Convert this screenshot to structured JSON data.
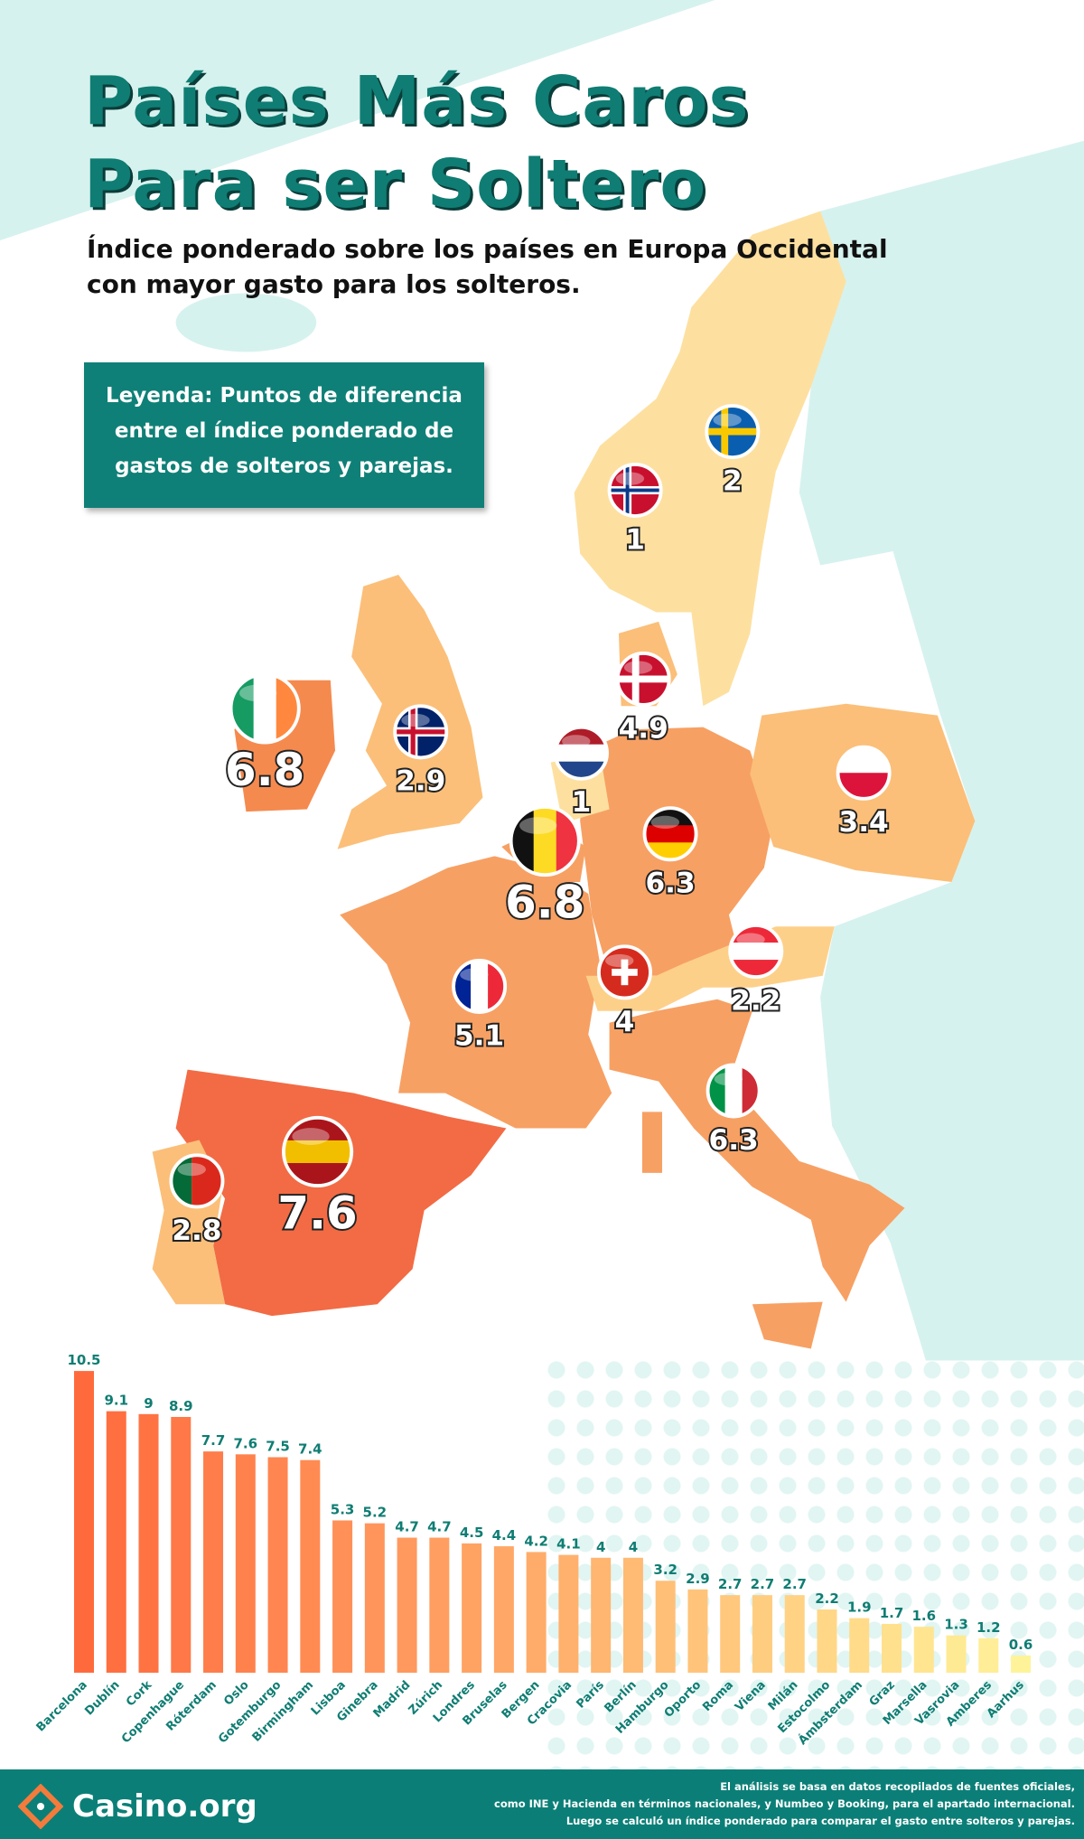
{
  "title_line1": "Países Más Caros",
  "title_line2": "Para ser Soltero",
  "subtitle_line1": "Índice ponderado sobre los países en Europa Occidental",
  "subtitle_line2": "con mayor gasto para los solteros.",
  "legend": [
    "Leyenda: Puntos de diferencia",
    "entre el índice ponderado de",
    "gastos de solteros y parejas."
  ],
  "colors": {
    "teal": "#0f8077",
    "title": "#0f7d73",
    "highest": "#f26b45",
    "high": "#f7a063",
    "mid": "#fbbf79",
    "low": "#fde0a0",
    "other_land": "#d6f2ee"
  },
  "map": [
    {
      "country": "Suecia",
      "flag": "sweden-flag",
      "value": "2"
    },
    {
      "country": "Noruega",
      "flag": "norway-flag",
      "value": "1"
    },
    {
      "country": "Dinamarca",
      "flag": "denmark-flag",
      "value": "4.9"
    },
    {
      "country": "Países Bajos",
      "flag": "netherlands-flag",
      "value": "1"
    },
    {
      "country": "Reino Unido",
      "flag": "uk-flag",
      "value": "2.9"
    },
    {
      "country": "Irlanda",
      "flag": "ireland-flag",
      "value": "6.8"
    },
    {
      "country": "Polonia",
      "flag": "poland-flag",
      "value": "3.4"
    },
    {
      "country": "Bélgica",
      "flag": "belgium-flag",
      "value": "6.8"
    },
    {
      "country": "Alemania",
      "flag": "germany-flag",
      "value": "6.3"
    },
    {
      "country": "Francia",
      "flag": "france-flag",
      "value": "5.1"
    },
    {
      "country": "Suiza",
      "flag": "switzerland-flag",
      "value": "4"
    },
    {
      "country": "Austria",
      "flag": "austria-flag",
      "value": "2.2"
    },
    {
      "country": "Italia",
      "flag": "italy-flag",
      "value": "6.3"
    },
    {
      "country": "España",
      "flag": "spain-flag",
      "value": "7.6"
    },
    {
      "country": "Portugal",
      "flag": "portugal-flag",
      "value": "2.8"
    }
  ],
  "chart_data": {
    "type": "bar",
    "categories": [
      "Barcelona",
      "Dublín",
      "Cork",
      "Copenhague",
      "Róterdam",
      "Oslo",
      "Gotemburgo",
      "Birmingham",
      "Lisboa",
      "Ginebra",
      "Madrid",
      "Zúrich",
      "Londres",
      "Bruselas",
      "Bergen",
      "Cracovia",
      "París",
      "Berlín",
      "Hamburgo",
      "Oporto",
      "Roma",
      "Viena",
      "Milán",
      "Estocolmo",
      "Ámbsterdam",
      "Graz",
      "Marsella",
      "Vasrovia",
      "Amberes",
      "Aarhus"
    ],
    "values": [
      10.5,
      9.1,
      9,
      8.9,
      7.7,
      7.6,
      7.5,
      7.4,
      5.3,
      5.2,
      4.7,
      4.7,
      4.5,
      4.4,
      4.2,
      4.1,
      4,
      4,
      3.2,
      2.9,
      2.7,
      2.7,
      2.7,
      2.2,
      1.9,
      1.7,
      1.6,
      1.3,
      1.2,
      0.6
    ],
    "labels": [
      "10.5",
      "9.1",
      "9",
      "8.9",
      "7.7",
      "7.6",
      "7.5",
      "7.4",
      "5.3",
      "5.2",
      "4.7",
      "4.7",
      "4.5",
      "4.4",
      "4.2",
      "4.1",
      "4",
      "4",
      "3.2",
      "2.9",
      "2.7",
      "2.7",
      "2.7",
      "2.2",
      "1.9",
      "1.7",
      "1.6",
      "1.3",
      "1.2",
      "0.6"
    ],
    "ylim": [
      0,
      10.5
    ],
    "grid": false,
    "color_gradient": [
      "#ff6a3d",
      "#fff39a"
    ]
  },
  "footer": {
    "logo": "Casino.org",
    "note": [
      "El análisis se basa en datos recopilados de fuentes oficiales,",
      "como INE y Hacienda en términos nacionales, y Numbeo y Booking, para el apartado internacional.",
      "Luego se calculó un índice ponderado para comparar el gasto entre solteros y parejas."
    ]
  }
}
